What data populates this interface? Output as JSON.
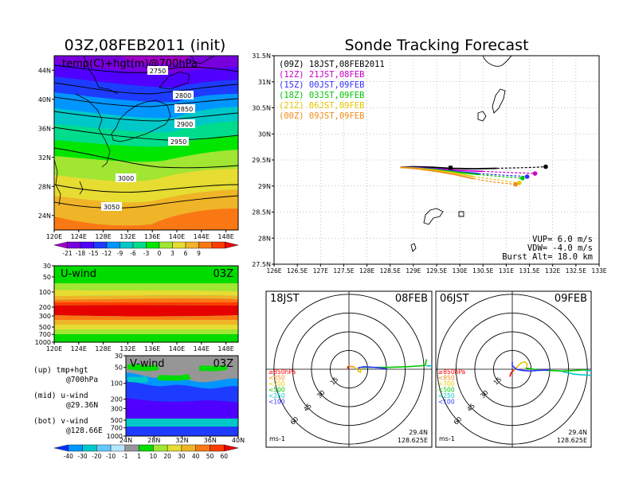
{
  "chart_data": [
    {
      "type": "heatmap",
      "title": "03Z,08FEB2011 (init)",
      "subtitle": "temp(C)+hgt(m)@700hPa",
      "xticks": [
        "120E",
        "124E",
        "128E",
        "132E",
        "136E",
        "140E",
        "144E",
        "148E"
      ],
      "yticks": [
        "24N",
        "28N",
        "32N",
        "36N",
        "40N",
        "44N"
      ],
      "contour_labels": [
        "2750",
        "2800",
        "2850",
        "2900",
        "2950",
        "3000",
        "3050"
      ]
    },
    {
      "type": "heatmap",
      "name": "temp colorbar",
      "labels": [
        "-21",
        "-18",
        "-15",
        "-12",
        "-9",
        "-6",
        "-3",
        "0",
        "3",
        "6",
        "9"
      ],
      "colors": [
        "#a000c8",
        "#7800dc",
        "#5000ff",
        "#1e3cff",
        "#0096ff",
        "#00c8c8",
        "#00dc8c",
        "#00e600",
        "#a0e632",
        "#e6dc32",
        "#f0b428",
        "#fa7814",
        "#ff3c00",
        "#f00a0a"
      ]
    },
    {
      "type": "heatmap",
      "title": "U-wind",
      "time": "03Z",
      "xticks": [
        "120E",
        "124E",
        "128E",
        "132E",
        "136E",
        "140E",
        "144E",
        "148E"
      ],
      "yticks": [
        "30",
        "50",
        "100",
        "200",
        "300",
        "500",
        "700",
        "1000"
      ]
    },
    {
      "type": "heatmap",
      "title": "V-wind",
      "time": "03Z",
      "xticks": [
        "24N",
        "28N",
        "32N",
        "36N",
        "40N"
      ],
      "yticks": [
        "30",
        "50",
        "100",
        "200",
        "300",
        "500",
        "700",
        "1000"
      ]
    },
    {
      "type": "heatmap",
      "name": "wind colorbar",
      "labels": [
        "-40",
        "-30",
        "-20",
        "-10",
        "-1",
        "1",
        "10",
        "20",
        "30",
        "40",
        "50",
        "60"
      ],
      "colors": [
        "#0032ff",
        "#0096ff",
        "#00c8c8",
        "#64c8ff",
        "#b4e6ff",
        "#969696",
        "#00dc00",
        "#a0e632",
        "#e6dc32",
        "#f0b428",
        "#fa7814",
        "#ff3c00",
        "#e60000"
      ]
    },
    {
      "type": "line",
      "title": "Sonde Tracking Forecast",
      "xlim": [
        126,
        133
      ],
      "ylim": [
        27.5,
        31.5
      ],
      "xticks": [
        "126E",
        "126.5E",
        "127E",
        "127.5E",
        "128E",
        "128.5E",
        "129E",
        "129.5E",
        "130E",
        "130.5E",
        "131E",
        "131.5E",
        "132E",
        "132.5E",
        "133E"
      ],
      "yticks": [
        "27.5N",
        "28N",
        "28.5N",
        "29N",
        "29.5N",
        "30N",
        "30.5N",
        "31N",
        "31.5N"
      ],
      "series": [
        {
          "name": "(09Z)  18JST,08FEB2011",
          "color": "#000000",
          "x": [
            128.72,
            129.0,
            129.4,
            129.8,
            130.3,
            130.8,
            131.3,
            131.65,
            131.85
          ],
          "y": [
            29.36,
            29.37,
            29.36,
            29.34,
            29.33,
            29.34,
            29.35,
            29.36,
            29.37
          ]
        },
        {
          "name": "(12Z)  21JST,08FEB",
          "color": "#c800c8",
          "x": [
            128.72,
            129.1,
            129.5,
            130.0,
            130.5,
            131.0,
            131.4,
            131.62
          ],
          "y": [
            29.36,
            29.35,
            29.33,
            29.3,
            29.28,
            29.26,
            29.25,
            29.24
          ]
        },
        {
          "name": "(15Z)  00JST,09FEB",
          "color": "#3232ff",
          "x": [
            128.72,
            129.1,
            129.5,
            129.9,
            130.4,
            130.9,
            131.3,
            131.45
          ],
          "y": [
            29.36,
            29.35,
            29.32,
            29.28,
            29.24,
            29.21,
            29.19,
            29.18
          ]
        },
        {
          "name": "(18Z)  03JST,09FEB",
          "color": "#00c800",
          "x": [
            128.72,
            129.1,
            129.5,
            129.9,
            130.4,
            130.9,
            131.2,
            131.35
          ],
          "y": [
            29.36,
            29.34,
            29.31,
            29.27,
            29.22,
            29.18,
            29.16,
            29.15
          ]
        },
        {
          "name": "(21Z)  06JST,09FEB",
          "color": "#e6c800",
          "x": [
            128.72,
            129.1,
            129.5,
            129.9,
            130.3,
            130.8,
            131.1,
            131.28
          ],
          "y": [
            29.36,
            29.34,
            29.3,
            29.25,
            29.18,
            29.12,
            29.08,
            29.06
          ]
        },
        {
          "name": "(00Z)  09JST,09FEB",
          "color": "#f08c14",
          "x": [
            128.72,
            129.1,
            129.5,
            129.9,
            130.3,
            130.7,
            131.0,
            131.2
          ],
          "y": [
            29.36,
            29.33,
            29.28,
            29.22,
            29.14,
            29.08,
            29.05,
            29.03
          ]
        }
      ],
      "launch_marker": {
        "x": 129.8,
        "y": 29.35
      },
      "notes": [
        "VUP=  6.0 m/s",
        "VDW= -4.0 m/s",
        "Burst Alt= 18.0 km"
      ]
    },
    {
      "type": "line",
      "name": "hodograph left",
      "time_label": "18JST",
      "date_label": "08FEB",
      "rings": [
        15,
        30,
        45,
        60
      ],
      "ring_labels": [
        "15",
        "30",
        "45",
        "60"
      ],
      "units": "ms-1",
      "location": [
        "29.4N",
        "128.625E"
      ],
      "level_legend": [
        "≥850hPa",
        "<850",
        "<700",
        "<500",
        "<250",
        "<100"
      ],
      "level_colors": [
        "#ff0000",
        "#f08c14",
        "#e6c800",
        "#00c800",
        "#00c8c8",
        "#3232ff"
      ],
      "series": [
        {
          "name": "≥850hPa",
          "color": "#ff0000",
          "u": [
            0,
            -1,
            -0.5
          ],
          "v": [
            0,
            1.5,
            2.5
          ]
        },
        {
          "name": "<850",
          "color": "#f08c14",
          "u": [
            -0.5,
            2,
            4
          ],
          "v": [
            2.5,
            2.2,
            1.8
          ]
        },
        {
          "name": "<700",
          "color": "#e6c800",
          "u": [
            4,
            6,
            8,
            9,
            10,
            11
          ],
          "v": [
            1.8,
            0.5,
            -2,
            -2.5,
            0,
            1.5
          ]
        },
        {
          "name": "<500",
          "color": "#00c800",
          "u": [
            11,
            30,
            47,
            61,
            62
          ],
          "v": [
            1.5,
            1.5,
            2,
            3,
            8
          ]
        },
        {
          "name": "<250",
          "color": "#00c8c8",
          "u": [
            62,
            72,
            80
          ],
          "v": [
            2.5,
            3.5,
            3
          ]
        },
        {
          "name": "<100",
          "color": "#3232ff",
          "u": [
            7,
            12,
            20,
            30
          ],
          "v": [
            1,
            2,
            1.5,
            0.5
          ]
        }
      ]
    },
    {
      "type": "line",
      "name": "hodograph right",
      "time_label": "06JST",
      "date_label": "09FEB",
      "rings": [
        15,
        30,
        45,
        60
      ],
      "ring_labels": [
        "15",
        "30",
        "45",
        "60"
      ],
      "units": "ms-1",
      "location": [
        "29.4N",
        "128.625E"
      ],
      "level_legend": [
        "≥850hPa",
        "<850",
        "<700",
        "<500",
        "<250",
        "<100"
      ],
      "level_colors": [
        "#ff0000",
        "#f08c14",
        "#e6c800",
        "#00c800",
        "#00c8c8",
        "#3232ff"
      ],
      "series": [
        {
          "name": "≥850hPa",
          "color": "#ff0000",
          "u": [
            -2,
            -1,
            1
          ],
          "v": [
            -6,
            -3,
            -1
          ]
        },
        {
          "name": "<850",
          "color": "#f08c14",
          "u": [
            1,
            3,
            4
          ],
          "v": [
            -1,
            0.5,
            2
          ]
        },
        {
          "name": "<700",
          "color": "#e6c800",
          "u": [
            4,
            7,
            10,
            12,
            11
          ],
          "v": [
            2,
            5,
            6,
            4,
            1
          ]
        },
        {
          "name": "<500",
          "color": "#00c800",
          "u": [
            11,
            20,
            30,
            40,
            50,
            58,
            59
          ],
          "v": [
            1,
            -0.5,
            -1,
            -1.5,
            -1,
            -0.5,
            -1
          ]
        },
        {
          "name": "<250",
          "color": "#00c8c8",
          "u": [
            59,
            70,
            84,
            76,
            64,
            50,
            40
          ],
          "v": [
            -1,
            -1.5,
            -3,
            -5,
            -5,
            -4,
            -2
          ]
        },
        {
          "name": "<100",
          "color": "#3232ff",
          "u": [
            0,
            0,
            3,
            8,
            14,
            20,
            30
          ],
          "v": [
            6,
            3,
            0,
            -1,
            -1.5,
            -1,
            -0.5
          ]
        }
      ]
    }
  ],
  "side_legend": {
    "up": "(up) tmp+hgt",
    "up2": "@700hPa",
    "mid": "(mid) u-wind",
    "mid2": "@29.36N",
    "bot": "(bot) v-wind",
    "bot2": "@128.66E"
  }
}
